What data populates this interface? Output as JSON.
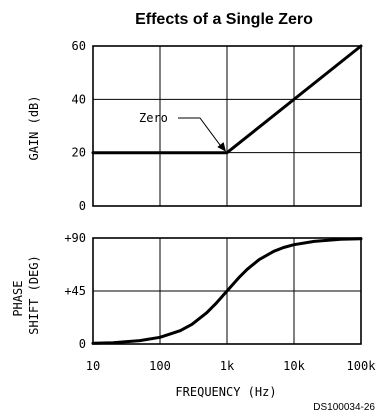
{
  "title": "Effects of a Single Zero",
  "figure_code": "DS100034-26",
  "chart_data": [
    {
      "type": "line",
      "name": "gain",
      "ylabel": "GAIN (dB)",
      "xscale": "log",
      "xlim": [
        10,
        100000
      ],
      "ylim": [
        0,
        60
      ],
      "yticks": [
        0,
        20,
        40,
        60
      ],
      "ytick_labels": [
        "0",
        "20",
        "40",
        "60"
      ],
      "grid": true,
      "x": [
        10,
        1000,
        100000
      ],
      "y": [
        20,
        20,
        60
      ],
      "annotation": {
        "text": "Zero",
        "x": 1000,
        "y": 20
      }
    },
    {
      "type": "line",
      "name": "phase",
      "ylabel_lines": [
        "PHASE",
        "SHIFT (DEG)"
      ],
      "xlabel": "FREQUENCY (Hz)",
      "xscale": "log",
      "xlim": [
        10,
        100000
      ],
      "ylim": [
        0,
        90
      ],
      "yticks": [
        0,
        45,
        90
      ],
      "ytick_labels": [
        "0",
        "+45",
        "+90"
      ],
      "xticks": [
        10,
        100,
        1000,
        10000,
        100000
      ],
      "xtick_labels": [
        "10",
        "100",
        "1k",
        "10k",
        "100k"
      ],
      "grid": true,
      "x": [
        10,
        20,
        50,
        100,
        200,
        300,
        500,
        700,
        1000,
        1500,
        2000,
        3000,
        5000,
        7000,
        10000,
        20000,
        50000,
        100000
      ],
      "y": [
        0.6,
        1.1,
        2.9,
        5.7,
        11.3,
        16.7,
        26.6,
        35.0,
        45.0,
        56.3,
        63.4,
        71.6,
        78.7,
        81.9,
        84.3,
        87.1,
        88.9,
        89.4
      ]
    }
  ]
}
